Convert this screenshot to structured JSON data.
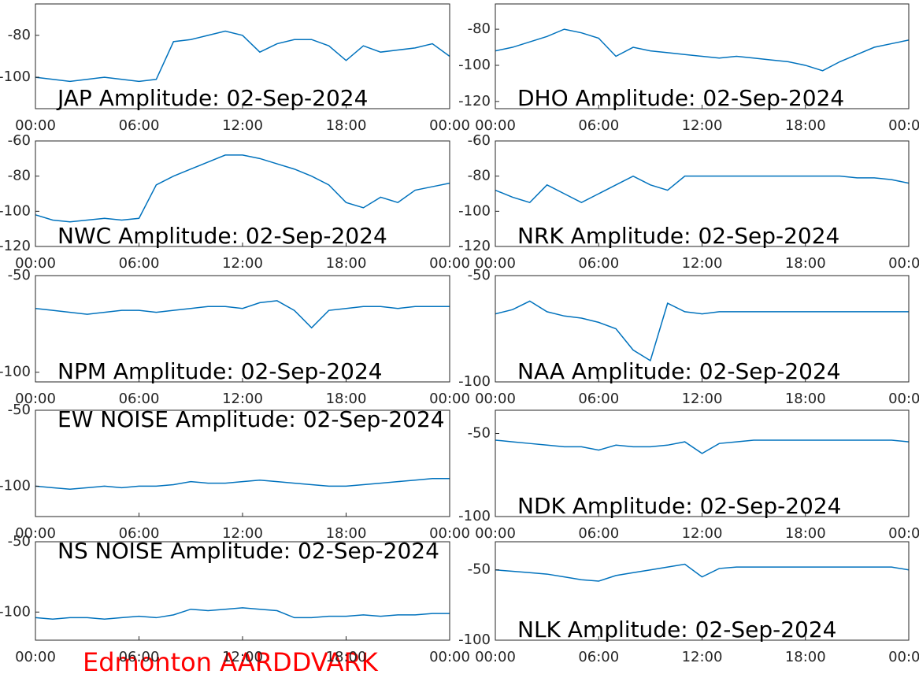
{
  "chart_data": [
    {
      "type": "line",
      "title": "JAP Amplitude: 02-Sep-2024",
      "color": "#0072bd",
      "x": [
        0,
        1,
        2,
        3,
        4,
        5,
        6,
        7,
        8,
        9,
        10,
        11,
        12,
        13,
        14,
        15,
        16,
        17,
        18,
        19,
        20,
        21,
        22,
        23,
        24
      ],
      "values": [
        -100,
        -101,
        -102,
        -101,
        -100,
        -101,
        -102,
        -101,
        -83,
        -82,
        -80,
        -78,
        -80,
        -88,
        -84,
        -82,
        -82,
        -85,
        -92,
        -85,
        -88,
        -87,
        -86,
        -84,
        -90
      ],
      "xlim": [
        0,
        24
      ],
      "xticks": [
        {
          "value": 0,
          "label": "00:00"
        },
        {
          "value": 6,
          "label": "06:00"
        },
        {
          "value": 12,
          "label": "12:00"
        },
        {
          "value": 18,
          "label": "18:00"
        },
        {
          "value": 24,
          "label": "00:00"
        }
      ],
      "ylim": [
        -115,
        -65
      ],
      "yticks": [
        -100,
        -80
      ]
    },
    {
      "type": "line",
      "title": "DHO Amplitude: 02-Sep-2024",
      "color": "#0072bd",
      "x": [
        0,
        1,
        2,
        3,
        4,
        5,
        6,
        7,
        8,
        9,
        10,
        11,
        12,
        13,
        14,
        15,
        16,
        17,
        18,
        19,
        20,
        21,
        22,
        23,
        24
      ],
      "values": [
        -92,
        -90,
        -87,
        -84,
        -80,
        -82,
        -85,
        -95,
        -90,
        -92,
        -93,
        -94,
        -95,
        -96,
        -95,
        -96,
        -97,
        -98,
        -100,
        -103,
        -98,
        -94,
        -90,
        -88,
        -86
      ],
      "xlim": [
        0,
        24
      ],
      "xticks": [
        {
          "value": 0,
          "label": "00:00"
        },
        {
          "value": 6,
          "label": "06:00"
        },
        {
          "value": 12,
          "label": "12:00"
        },
        {
          "value": 18,
          "label": "18:00"
        },
        {
          "value": 24,
          "label": "00:00"
        }
      ],
      "ylim": [
        -124,
        -66
      ],
      "yticks": [
        -120,
        -100,
        -80
      ]
    },
    {
      "type": "line",
      "title": "NWC Amplitude: 02-Sep-2024",
      "color": "#0072bd",
      "x": [
        0,
        1,
        2,
        3,
        4,
        5,
        6,
        7,
        8,
        9,
        10,
        11,
        12,
        13,
        14,
        15,
        16,
        17,
        18,
        19,
        20,
        21,
        22,
        23,
        24
      ],
      "values": [
        -102,
        -105,
        -106,
        -105,
        -104,
        -105,
        -104,
        -85,
        -80,
        -76,
        -72,
        -68,
        -68,
        -70,
        -73,
        -76,
        -80,
        -85,
        -95,
        -98,
        -92,
        -95,
        -88,
        -86,
        -84
      ],
      "xlim": [
        0,
        24
      ],
      "xticks": [
        {
          "value": 0,
          "label": "00:00"
        },
        {
          "value": 6,
          "label": "06:00"
        },
        {
          "value": 12,
          "label": "12:00"
        },
        {
          "value": 18,
          "label": "18:00"
        },
        {
          "value": 24,
          "label": "00:00"
        }
      ],
      "ylim": [
        -120,
        -60
      ],
      "yticks": [
        -120,
        -100,
        -80,
        -60
      ]
    },
    {
      "type": "line",
      "title": "NRK Amplitude: 02-Sep-2024",
      "color": "#0072bd",
      "x": [
        0,
        1,
        2,
        3,
        4,
        5,
        6,
        7,
        8,
        9,
        10,
        11,
        12,
        13,
        14,
        15,
        16,
        17,
        18,
        19,
        20,
        21,
        22,
        23,
        24
      ],
      "values": [
        -88,
        -92,
        -95,
        -85,
        -90,
        -95,
        -90,
        -85,
        -80,
        -85,
        -88,
        -80,
        -80,
        -80,
        -80,
        -80,
        -80,
        -80,
        -80,
        -80,
        -80,
        -81,
        -81,
        -82,
        -84
      ],
      "xlim": [
        0,
        24
      ],
      "xticks": [
        {
          "value": 0,
          "label": "00:00"
        },
        {
          "value": 6,
          "label": "06:00"
        },
        {
          "value": 12,
          "label": "12:00"
        },
        {
          "value": 18,
          "label": "18:00"
        },
        {
          "value": 24,
          "label": "00:00"
        }
      ],
      "ylim": [
        -120,
        -60
      ],
      "yticks": [
        -120,
        -100,
        -80,
        -60
      ]
    },
    {
      "type": "line",
      "title": "NPM Amplitude: 02-Sep-2024",
      "color": "#0072bd",
      "x": [
        0,
        1,
        2,
        3,
        4,
        5,
        6,
        7,
        8,
        9,
        10,
        11,
        12,
        13,
        14,
        15,
        16,
        17,
        18,
        19,
        20,
        21,
        22,
        23,
        24
      ],
      "values": [
        -67,
        -68,
        -69,
        -70,
        -69,
        -68,
        -68,
        -69,
        -68,
        -67,
        -66,
        -66,
        -67,
        -64,
        -63,
        -68,
        -77,
        -68,
        -67,
        -66,
        -66,
        -67,
        -66,
        -66,
        -66
      ],
      "xlim": [
        0,
        24
      ],
      "xticks": [
        {
          "value": 0,
          "label": "00:00"
        },
        {
          "value": 6,
          "label": "06:00"
        },
        {
          "value": 12,
          "label": "12:00"
        },
        {
          "value": 18,
          "label": "18:00"
        },
        {
          "value": 24,
          "label": "00:00"
        }
      ],
      "ylim": [
        -105,
        -50
      ],
      "yticks": [
        -100,
        -50
      ]
    },
    {
      "type": "line",
      "title": "NAA Amplitude: 02-Sep-2024",
      "color": "#0072bd",
      "x": [
        0,
        1,
        2,
        3,
        4,
        5,
        6,
        7,
        8,
        9,
        10,
        11,
        12,
        13,
        14,
        15,
        16,
        17,
        18,
        19,
        20,
        21,
        22,
        23,
        24
      ],
      "values": [
        -68,
        -66,
        -62,
        -67,
        -69,
        -70,
        -72,
        -75,
        -85,
        -90,
        -63,
        -67,
        -68,
        -67,
        -67,
        -67,
        -67,
        -67,
        -67,
        -67,
        -67,
        -67,
        -67,
        -67,
        -67
      ],
      "xlim": [
        0,
        24
      ],
      "xticks": [
        {
          "value": 0,
          "label": "00:00"
        },
        {
          "value": 6,
          "label": "06:00"
        },
        {
          "value": 12,
          "label": "12:00"
        },
        {
          "value": 18,
          "label": "18:00"
        },
        {
          "value": 24,
          "label": "00:00"
        }
      ],
      "ylim": [
        -100,
        -50
      ],
      "yticks": [
        -100,
        -50
      ]
    },
    {
      "type": "line",
      "title": "EW NOISE Amplitude: 02-Sep-2024",
      "color": "#0072bd",
      "x": [
        0,
        1,
        2,
        3,
        4,
        5,
        6,
        7,
        8,
        9,
        10,
        11,
        12,
        13,
        14,
        15,
        16,
        17,
        18,
        19,
        20,
        21,
        22,
        23,
        24
      ],
      "values": [
        -100,
        -101,
        -102,
        -101,
        -100,
        -101,
        -100,
        -100,
        -99,
        -97,
        -98,
        -98,
        -97,
        -96,
        -97,
        -98,
        -99,
        -100,
        -100,
        -99,
        -98,
        -97,
        -96,
        -95,
        -95
      ],
      "xlim": [
        0,
        24
      ],
      "xticks": [
        {
          "value": 0,
          "label": "00:00"
        },
        {
          "value": 6,
          "label": "06:00"
        },
        {
          "value": 12,
          "label": "12:00"
        },
        {
          "value": 18,
          "label": "18:00"
        },
        {
          "value": 24,
          "label": "00:00"
        }
      ],
      "ylim": [
        -120,
        -50
      ],
      "yticks": [
        -100,
        -50
      ]
    },
    {
      "type": "line",
      "title": "NDK Amplitude: 02-Sep-2024",
      "color": "#0072bd",
      "x": [
        0,
        1,
        2,
        3,
        4,
        5,
        6,
        7,
        8,
        9,
        10,
        11,
        12,
        13,
        14,
        15,
        16,
        17,
        18,
        19,
        20,
        21,
        22,
        23,
        24
      ],
      "values": [
        -54,
        -55,
        -56,
        -57,
        -58,
        -58,
        -60,
        -57,
        -58,
        -58,
        -57,
        -55,
        -62,
        -56,
        -55,
        -54,
        -54,
        -54,
        -54,
        -54,
        -54,
        -54,
        -54,
        -54,
        -55
      ],
      "xlim": [
        0,
        24
      ],
      "xticks": [
        {
          "value": 0,
          "label": "00:00"
        },
        {
          "value": 6,
          "label": "06:00"
        },
        {
          "value": 12,
          "label": "12:00"
        },
        {
          "value": 18,
          "label": "18:00"
        },
        {
          "value": 24,
          "label": "00:00"
        }
      ],
      "ylim": [
        -100,
        -36
      ],
      "yticks": [
        -100,
        -50
      ]
    },
    {
      "type": "line",
      "title": "NS NOISE Amplitude: 02-Sep-2024",
      "color": "#0072bd",
      "x": [
        0,
        1,
        2,
        3,
        4,
        5,
        6,
        7,
        8,
        9,
        10,
        11,
        12,
        13,
        14,
        15,
        16,
        17,
        18,
        19,
        20,
        21,
        22,
        23,
        24
      ],
      "values": [
        -104,
        -105,
        -104,
        -104,
        -105,
        -104,
        -103,
        -104,
        -102,
        -98,
        -99,
        -98,
        -97,
        -98,
        -99,
        -104,
        -104,
        -103,
        -103,
        -102,
        -103,
        -102,
        -102,
        -101,
        -101
      ],
      "xlim": [
        0,
        24
      ],
      "xticks": [
        {
          "value": 0,
          "label": "00:00"
        },
        {
          "value": 6,
          "label": "06:00"
        },
        {
          "value": 12,
          "label": "12:00"
        },
        {
          "value": 18,
          "label": "18:00"
        },
        {
          "value": 24,
          "label": "00:00"
        }
      ],
      "ylim": [
        -120,
        -50
      ],
      "yticks": [
        -100,
        -50
      ]
    },
    {
      "type": "line",
      "title": "NLK Amplitude: 02-Sep-2024",
      "color": "#0072bd",
      "x": [
        0,
        1,
        2,
        3,
        4,
        5,
        6,
        7,
        8,
        9,
        10,
        11,
        12,
        13,
        14,
        15,
        16,
        17,
        18,
        19,
        20,
        21,
        22,
        23,
        24
      ],
      "values": [
        -50,
        -51,
        -52,
        -53,
        -55,
        -57,
        -58,
        -54,
        -52,
        -50,
        -48,
        -46,
        -55,
        -49,
        -48,
        -48,
        -48,
        -48,
        -48,
        -48,
        -48,
        -48,
        -48,
        -48,
        -50
      ],
      "xlim": [
        0,
        24
      ],
      "xticks": [
        {
          "value": 0,
          "label": "00:00"
        },
        {
          "value": 6,
          "label": "06:00"
        },
        {
          "value": 12,
          "label": "12:00"
        },
        {
          "value": 18,
          "label": "18:00"
        },
        {
          "value": 24,
          "label": "00:00"
        }
      ],
      "ylim": [
        -100,
        -30
      ],
      "yticks": [
        -100,
        -50
      ]
    }
  ],
  "footer": "Edmonton AARDDVARK"
}
